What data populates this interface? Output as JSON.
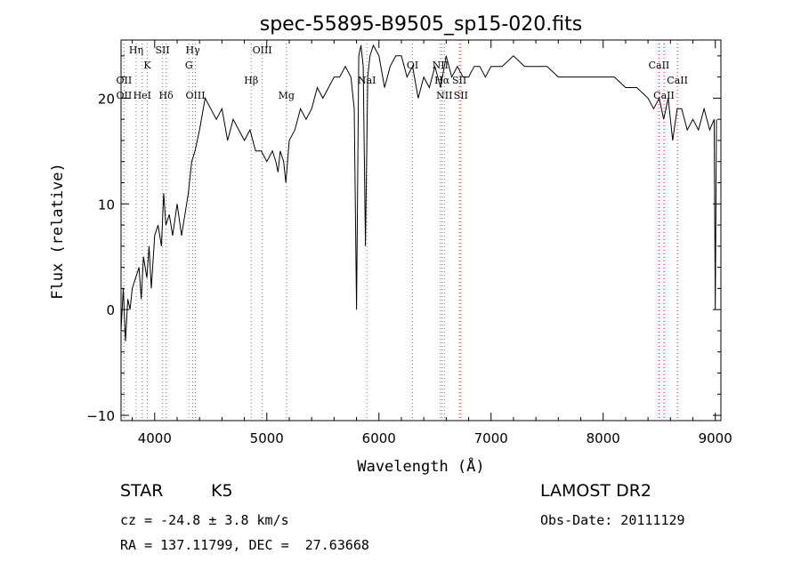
{
  "chart_data": {
    "type": "line",
    "title": "spec-55895-B9505_sp15-020.fits",
    "xlabel": "Wavelength (Å)",
    "ylabel": "Flux (relative)",
    "xlim": [
      3700,
      9050
    ],
    "ylim": [
      -10.5,
      25.5
    ],
    "xticks": [
      4000,
      5000,
      6000,
      7000,
      8000,
      9000
    ],
    "yticks": [
      -10,
      0,
      10,
      20
    ],
    "grid": false,
    "legend": "none",
    "colors": {
      "line": "#000000",
      "absorption_marker": "#777777",
      "emission_marker": "#d62020"
    },
    "series": [
      {
        "x": [
          3700,
          3720,
          3740,
          3760,
          3780,
          3800,
          3830,
          3860,
          3880,
          3900,
          3930,
          3950,
          3970,
          4000,
          4030,
          4060,
          4080,
          4100,
          4130,
          4160,
          4200,
          4240,
          4270,
          4300,
          4330,
          4360,
          4400,
          4450,
          4500,
          4550,
          4600,
          4650,
          4700,
          4750,
          4800,
          4850,
          4900,
          4950,
          5000,
          5050,
          5080,
          5100,
          5120,
          5150,
          5170,
          5200,
          5250,
          5300,
          5350,
          5400,
          5450,
          5500,
          5550,
          5600,
          5650,
          5700,
          5750,
          5780,
          5800,
          5820,
          5840,
          5860,
          5880,
          5900,
          5920,
          5950,
          6000,
          6050,
          6100,
          6150,
          6200,
          6250,
          6300,
          6350,
          6400,
          6450,
          6500,
          6550,
          6600,
          6650,
          6700,
          6750,
          6800,
          6850,
          6900,
          6950,
          7000,
          7100,
          7200,
          7300,
          7400,
          7500,
          7600,
          7700,
          7800,
          7900,
          8000,
          8100,
          8200,
          8300,
          8400,
          8450,
          8500,
          8540,
          8580,
          8620,
          8660,
          8700,
          8750,
          8800,
          8850,
          8900,
          8950,
          8990,
          9000,
          9010
        ],
        "y": [
          -2,
          2,
          -3,
          1,
          0,
          2,
          3,
          4,
          1,
          5,
          3,
          6,
          2,
          7,
          8,
          6,
          11,
          8,
          9,
          7,
          10,
          7,
          9,
          11,
          14,
          15,
          17,
          20,
          19,
          18,
          19,
          16,
          18,
          17,
          16,
          17,
          15,
          15,
          14,
          15,
          14,
          13,
          15,
          14,
          12,
          16,
          17,
          19,
          18,
          19,
          21,
          20,
          21,
          22,
          22,
          23,
          22,
          19,
          0,
          24,
          25,
          23,
          6,
          22,
          24,
          25,
          24,
          21,
          23,
          24,
          24,
          22,
          23,
          20,
          22,
          21,
          23,
          21,
          24,
          22,
          23,
          22,
          22,
          23,
          23,
          22,
          23,
          23,
          24,
          23,
          23,
          23,
          22,
          22,
          22,
          22,
          22,
          22,
          21,
          21,
          20,
          19,
          20,
          18,
          20,
          16,
          19,
          19,
          17,
          18,
          17,
          19,
          17,
          18,
          0,
          18
        ]
      }
    ],
    "line_markers": [
      {
        "label": "OII",
        "x": 3727,
        "row": 2,
        "kind": "absorption"
      },
      {
        "label": "OII",
        "x": 3727,
        "row": 3,
        "kind": "absorption"
      },
      {
        "label": "Hη",
        "x": 3835,
        "row": 0,
        "kind": "absorption"
      },
      {
        "label": "HeI",
        "x": 3889,
        "row": 3,
        "kind": "absorption"
      },
      {
        "label": "K",
        "x": 3934,
        "row": 1,
        "kind": "absorption"
      },
      {
        "label": "SII",
        "x": 4070,
        "row": 0,
        "kind": "absorption"
      },
      {
        "label": "Hδ",
        "x": 4102,
        "row": 3,
        "kind": "absorption"
      },
      {
        "label": "Hγ",
        "x": 4340,
        "row": 0,
        "kind": "absorption"
      },
      {
        "label": "G",
        "x": 4305,
        "row": 1,
        "kind": "absorption"
      },
      {
        "label": "OIII",
        "x": 4363,
        "row": 3,
        "kind": "absorption"
      },
      {
        "label": "OIII",
        "x": 4959,
        "row": 0,
        "kind": "absorption"
      },
      {
        "label": "Hβ",
        "x": 4861,
        "row": 2,
        "kind": "absorption"
      },
      {
        "label": "Mg",
        "x": 5175,
        "row": 3,
        "kind": "absorption"
      },
      {
        "label": "NaI",
        "x": 5893,
        "row": 2,
        "kind": "absorption"
      },
      {
        "label": "OI",
        "x": 6300,
        "row": 1,
        "kind": "absorption"
      },
      {
        "label": "NII",
        "x": 6548,
        "row": 1,
        "kind": "absorption"
      },
      {
        "label": "Hα",
        "x": 6563,
        "row": 2,
        "kind": "absorption"
      },
      {
        "label": "NII",
        "x": 6584,
        "row": 3,
        "kind": "absorption"
      },
      {
        "label": "SII",
        "x": 6717,
        "row": 2,
        "kind": "emission"
      },
      {
        "label": "SII",
        "x": 6731,
        "row": 3,
        "kind": "emission"
      },
      {
        "label": "CaII",
        "x": 8498,
        "row": 1,
        "kind": "emission"
      },
      {
        "label": "CaII",
        "x": 8542,
        "row": 3,
        "kind": "emission"
      },
      {
        "label": "CaII",
        "x": 8662,
        "row": 2,
        "kind": "emission"
      }
    ]
  },
  "info": {
    "class": "STAR",
    "subclass": "K5",
    "cz": "cz = -24.8 ± 3.8 km/s",
    "coords": "RA = 137.11799, DEC =  27.63668",
    "survey": "LAMOST DR2",
    "obs_date": "Obs-Date: 20111129"
  }
}
